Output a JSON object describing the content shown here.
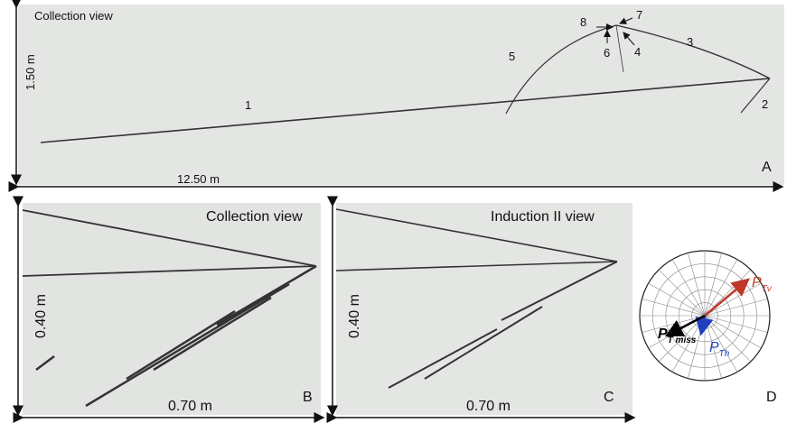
{
  "panel_a": {
    "view": "Collection view",
    "height": "1.50 m",
    "width": "12.50 m",
    "letter": "A",
    "tracks": [
      "1",
      "2",
      "3",
      "4",
      "5",
      "6",
      "7",
      "8"
    ]
  },
  "panel_b": {
    "view": "Collection view",
    "height": "0.40 m",
    "width": "0.70 m",
    "letter": "B"
  },
  "panel_c": {
    "view": "Induction II view",
    "height": "0.40 m",
    "width": "0.70 m",
    "letter": "C"
  },
  "panel_d": {
    "letter": "D",
    "vectors": [
      {
        "symbol": "P",
        "subscript": "Tν"
      },
      {
        "symbol": "P",
        "subscript": "Th"
      },
      {
        "symbol": "P",
        "subscript": "T miss"
      }
    ]
  }
}
